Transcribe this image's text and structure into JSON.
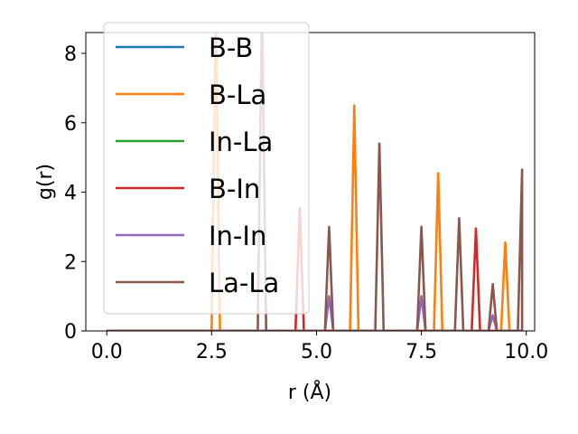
{
  "chart_data": {
    "type": "line",
    "xlabel": "r (Å)",
    "ylabel": "g(r)",
    "xlim": [
      -0.5,
      10.2
    ],
    "ylim": [
      0,
      8.6
    ],
    "x_ticks": [
      "0.0",
      "2.5",
      "5.0",
      "7.5",
      "10.0"
    ],
    "x_tick_values": [
      0,
      2.5,
      5,
      7.5,
      10
    ],
    "y_ticks": [
      "0",
      "2",
      "4",
      "6",
      "8"
    ],
    "y_tick_values": [
      0,
      2,
      4,
      6,
      8
    ],
    "grid": false,
    "legend_position": "upper-left",
    "x_start": 0,
    "x_end": 9.9,
    "series": [
      {
        "name": "B-B",
        "color": "#1f77b4",
        "peaks": []
      },
      {
        "name": "B-La",
        "color": "#ff7f0e",
        "peaks": [
          [
            2.6,
            9.2
          ],
          [
            5.9,
            6.5
          ],
          [
            7.9,
            4.55
          ],
          [
            9.5,
            2.55
          ]
        ]
      },
      {
        "name": "In-La",
        "color": "#2ca02c",
        "peaks": []
      },
      {
        "name": "B-In",
        "color": "#d62728",
        "peaks": [
          [
            4.6,
            3.55
          ],
          [
            8.8,
            2.95
          ]
        ]
      },
      {
        "name": "In-In",
        "color": "#9467bd",
        "peaks": [
          [
            5.3,
            1.0
          ],
          [
            7.5,
            1.0
          ],
          [
            9.2,
            0.45
          ]
        ]
      },
      {
        "name": "La-La",
        "color": "#8c564b",
        "peaks": [
          [
            3.7,
            9.5
          ],
          [
            5.3,
            3.0
          ],
          [
            6.5,
            5.4
          ],
          [
            7.5,
            3.0
          ],
          [
            8.4,
            3.25
          ],
          [
            9.2,
            1.35
          ],
          [
            9.9,
            4.65
          ]
        ]
      }
    ]
  }
}
